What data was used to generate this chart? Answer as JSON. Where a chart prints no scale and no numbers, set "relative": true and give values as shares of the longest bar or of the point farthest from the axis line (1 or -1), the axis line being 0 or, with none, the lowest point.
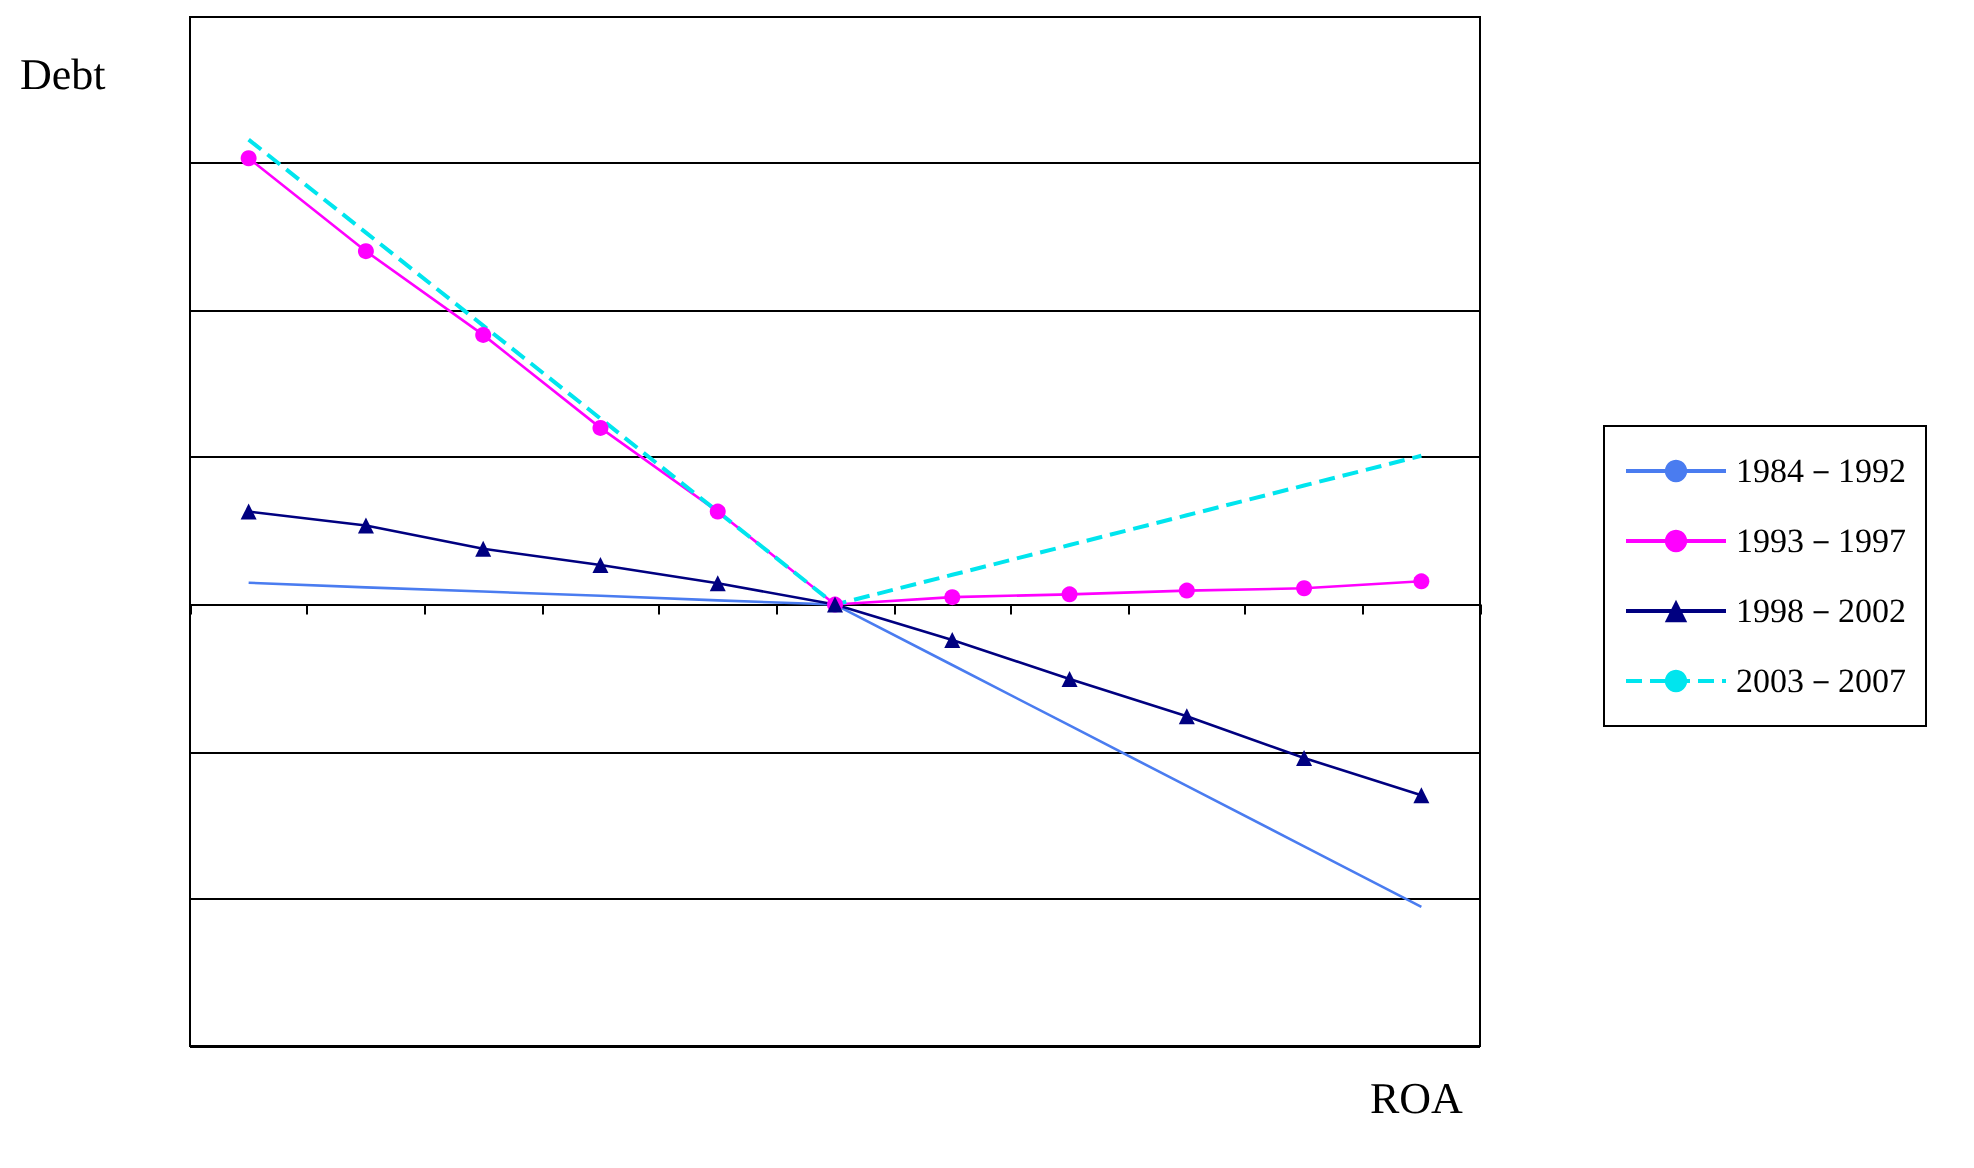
{
  "chart_data": {
    "type": "line",
    "relative": true,
    "xlabel": "ROA",
    "ylabel": "Debt",
    "categories": [
      null,
      null,
      null,
      null,
      null,
      null,
      null,
      null,
      null,
      null,
      null
    ],
    "grid": "y",
    "legend": "right",
    "series": [
      {
        "name": "1984－1992",
        "color": "#4a7cf0",
        "marker": "none",
        "line_style": "solid",
        "values": [
          0.047,
          0.037,
          0.028,
          0.019,
          0.009,
          0,
          -0.13,
          -0.26,
          -0.39,
          -0.52,
          -0.65
        ]
      },
      {
        "name": "1993－1997",
        "color": "#ff00ff",
        "marker": "circle",
        "line_style": "solid",
        "values": [
          0.96,
          0.76,
          0.58,
          0.38,
          0.2,
          0,
          0.016,
          0.022,
          0.03,
          0.035,
          0.05
        ]
      },
      {
        "name": "1998－2002",
        "color": "#000080",
        "marker": "triangle",
        "line_style": "solid",
        "values": [
          0.2,
          0.17,
          0.12,
          0.085,
          0.046,
          0,
          -0.076,
          -0.16,
          -0.24,
          -0.33,
          -0.41
        ]
      },
      {
        "name": "2003－2007",
        "color": "#00e5ee",
        "marker": "none",
        "line_style": "dashed",
        "values": [
          1,
          0.8,
          0.6,
          0.4,
          0.2,
          0,
          0.064,
          0.128,
          0.192,
          0.256,
          0.32
        ]
      }
    ]
  }
}
